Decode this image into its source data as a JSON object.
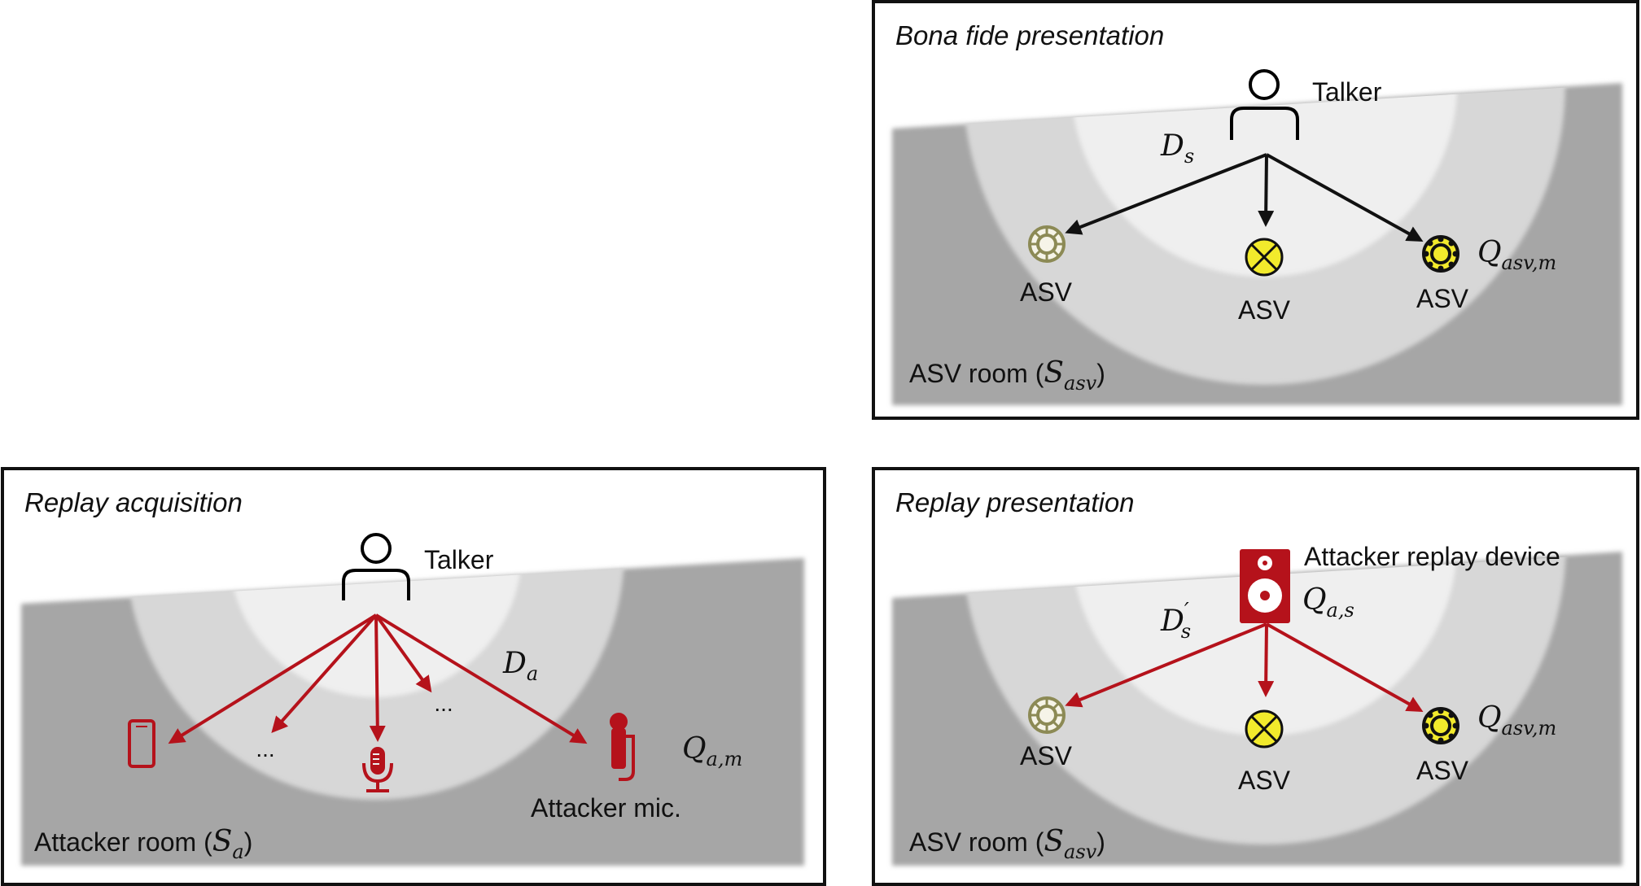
{
  "panels": {
    "bona_fide": {
      "title": "Bona fide presentation",
      "talker_label": "Talker",
      "distance_label": "D",
      "distance_sub": "s",
      "device_labels": [
        "ASV",
        "ASV",
        "ASV"
      ],
      "quality_label": "Q",
      "quality_sub": "asv,m",
      "room_label": "ASV room (",
      "room_symbol": "S",
      "room_sub": "asv",
      "room_close": ")"
    },
    "acquisition": {
      "title": "Replay acquisition",
      "talker_label": "Talker",
      "distance_label": "D",
      "distance_sub": "a",
      "ellipsis": [
        "...",
        "..."
      ],
      "quality_label": "Q",
      "quality_sub": "a,m",
      "mic_label": "Attacker mic.",
      "room_label": "Attacker room (",
      "room_symbol": "S",
      "room_sub": "a",
      "room_close": ")"
    },
    "replay": {
      "title": "Replay presentation",
      "device_label": "Attacker replay device",
      "device_quality": "Q",
      "device_quality_sub": "a,s",
      "distance_label": "D",
      "distance_prime": "′",
      "distance_sub": "s",
      "device_labels": [
        "ASV",
        "ASV",
        "ASV"
      ],
      "quality_label": "Q",
      "quality_sub": "asv,m",
      "room_label": "ASV room (",
      "room_symbol": "S",
      "room_sub": "asv",
      "room_close": ")"
    }
  },
  "colors": {
    "frame": "#111111",
    "room_dark": "#a6a6a6",
    "ring_mid": "#d7d7d7",
    "ring_inner": "#efefef",
    "arrow_black": "#111111",
    "arrow_red": "#b5121b",
    "asv_olive": "#8c8a55",
    "asv_yellow": "#f2ea2c"
  }
}
